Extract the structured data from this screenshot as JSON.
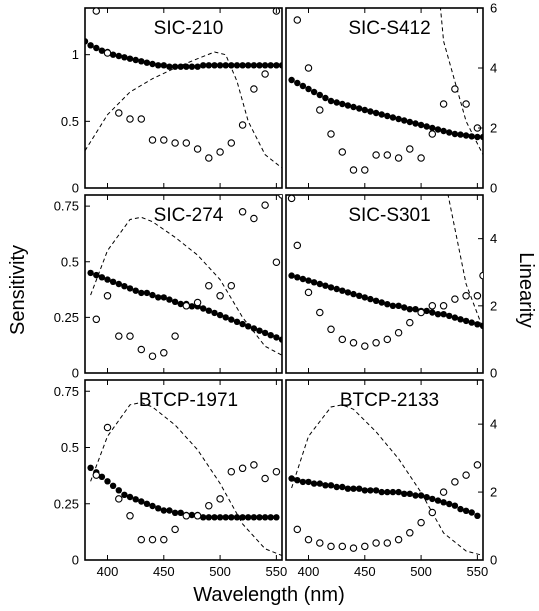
{
  "chart_data": {
    "type": "scatter",
    "layout": "3x2 panel grid with shared axes",
    "xlabel": "Wavelength (nm)",
    "ylabel_left": "Sensitivity",
    "ylabel_right": "Linearity",
    "xlim": [
      380,
      555
    ],
    "x_ticks": [
      "400",
      "450",
      "500",
      "550"
    ],
    "series_styles": {
      "filled_circles": "Sensitivity (left axis)",
      "open_circles": "Linearity (right axis)",
      "dashed_line": "reference spectrum (unscaled)"
    },
    "panels": [
      {
        "name": "SIC-210",
        "ylim_left": [
          0,
          1.35
        ],
        "left_ticks": [
          "0",
          "0.5",
          "1"
        ],
        "ylim_right": [
          0,
          6
        ],
        "right_ticks": [
          "0",
          "2",
          "4",
          "6"
        ],
        "filled": {
          "x": [
            380,
            385,
            390,
            395,
            400,
            405,
            410,
            415,
            420,
            425,
            430,
            435,
            440,
            445,
            450,
            455,
            460,
            465,
            470,
            475,
            480,
            485,
            490,
            495,
            500,
            505,
            510,
            515,
            520,
            525,
            530,
            535,
            540,
            545,
            550,
            555
          ],
          "y": [
            1.1,
            1.07,
            1.05,
            1.03,
            1.02,
            1.0,
            0.99,
            0.98,
            0.97,
            0.96,
            0.95,
            0.94,
            0.93,
            0.92,
            0.92,
            0.91,
            0.91,
            0.91,
            0.91,
            0.91,
            0.91,
            0.92,
            0.92,
            0.92,
            0.92,
            0.92,
            0.92,
            0.92,
            0.92,
            0.92,
            0.92,
            0.92,
            0.92,
            0.92,
            0.92,
            0.92
          ]
        },
        "open": {
          "x": [
            390,
            400,
            410,
            420,
            430,
            440,
            450,
            460,
            470,
            480,
            490,
            500,
            510,
            520,
            530,
            540,
            550
          ],
          "y": [
            5.9,
            4.5,
            2.5,
            2.3,
            2.3,
            1.6,
            1.6,
            1.5,
            1.5,
            1.3,
            1.0,
            1.2,
            1.5,
            2.1,
            3.3,
            3.8,
            5.9
          ]
        },
        "dashed": {
          "x": [
            380,
            400,
            420,
            440,
            460,
            480,
            495,
            505,
            515,
            525,
            540,
            555
          ],
          "y": [
            0.28,
            0.55,
            0.72,
            0.82,
            0.9,
            0.97,
            1.02,
            1.0,
            0.8,
            0.5,
            0.25,
            0.15
          ]
        }
      },
      {
        "name": "SIC-S412",
        "ylim_left": [
          0,
          1.35
        ],
        "left_ticks": [
          "0",
          "0.5",
          "1"
        ],
        "ylim_right": [
          0,
          6
        ],
        "right_ticks": [
          "0",
          "2",
          "4",
          "6"
        ],
        "filled": {
          "x": [
            385,
            390,
            395,
            400,
            405,
            410,
            415,
            420,
            425,
            430,
            435,
            440,
            445,
            450,
            455,
            460,
            465,
            470,
            475,
            480,
            485,
            490,
            495,
            500,
            505,
            510,
            515,
            520,
            525,
            530,
            535,
            540,
            545,
            550,
            555
          ],
          "y": [
            3.6,
            3.5,
            3.4,
            3.3,
            3.2,
            3.1,
            3.0,
            2.9,
            2.85,
            2.8,
            2.75,
            2.7,
            2.65,
            2.6,
            2.55,
            2.5,
            2.45,
            2.4,
            2.35,
            2.3,
            2.25,
            2.2,
            2.15,
            2.1,
            2.05,
            2.0,
            1.95,
            1.9,
            1.85,
            1.8,
            1.78,
            1.75,
            1.72,
            1.7,
            1.7
          ]
        },
        "open": {
          "x": [
            390,
            400,
            410,
            420,
            430,
            440,
            450,
            460,
            470,
            480,
            490,
            500,
            510,
            520,
            530,
            540,
            550
          ],
          "y": [
            5.6,
            4.0,
            2.6,
            1.8,
            1.2,
            0.6,
            0.6,
            1.1,
            1.1,
            1.0,
            1.3,
            1.0,
            1.8,
            2.8,
            3.3,
            2.8,
            2.0
          ]
        },
        "dashed": {
          "x": [
            385,
            400,
            420,
            440,
            450,
            460,
            480,
            500,
            520,
            540,
            555
          ],
          "y": [
            3.5,
            3.6,
            4.0,
            4.5,
            4.6,
            4.5,
            3.9,
            2.9,
            1.1,
            0.5,
            0.25
          ]
        }
      },
      {
        "name": "SIC-274",
        "ylim_left": [
          0,
          0.8
        ],
        "left_ticks": [
          "0",
          "0.25",
          "0.5",
          "0.75"
        ],
        "ylim_right": [
          0,
          5.3
        ],
        "right_ticks": [
          "0",
          "2",
          "4"
        ],
        "filled": {
          "x": [
            385,
            390,
            395,
            400,
            405,
            410,
            415,
            420,
            425,
            430,
            435,
            440,
            445,
            450,
            455,
            460,
            465,
            470,
            475,
            480,
            485,
            490,
            495,
            500,
            505,
            510,
            515,
            520,
            525,
            530,
            535,
            540,
            545,
            550,
            555
          ],
          "y": [
            0.45,
            0.44,
            0.43,
            0.42,
            0.41,
            0.4,
            0.39,
            0.38,
            0.37,
            0.36,
            0.36,
            0.35,
            0.34,
            0.34,
            0.33,
            0.32,
            0.31,
            0.31,
            0.3,
            0.3,
            0.29,
            0.28,
            0.27,
            0.26,
            0.25,
            0.24,
            0.23,
            0.22,
            0.21,
            0.2,
            0.19,
            0.18,
            0.17,
            0.16,
            0.15
          ]
        },
        "open": {
          "x": [
            390,
            400,
            410,
            420,
            430,
            440,
            450,
            460,
            470,
            480,
            490,
            500,
            510,
            520,
            530,
            540,
            550,
            555
          ],
          "y": [
            1.6,
            2.3,
            1.1,
            1.1,
            0.7,
            0.5,
            0.6,
            1.1,
            2.0,
            2.1,
            2.6,
            2.3,
            2.6,
            4.8,
            4.6,
            5.0,
            3.3,
            5.3
          ]
        },
        "dashed": {
          "x": [
            385,
            400,
            420,
            430,
            440,
            460,
            480,
            500,
            520,
            540,
            555
          ],
          "y": [
            0.35,
            0.55,
            0.69,
            0.7,
            0.68,
            0.61,
            0.53,
            0.42,
            0.25,
            0.12,
            0.08
          ]
        }
      },
      {
        "name": "SIC-S301",
        "ylim_left": [
          0,
          0.8
        ],
        "left_ticks": [
          "0",
          "0.25",
          "0.5",
          "0.75"
        ],
        "ylim_right": [
          0,
          5.3
        ],
        "right_ticks": [
          "0",
          "2",
          "4"
        ],
        "filled": {
          "x": [
            385,
            390,
            395,
            400,
            405,
            410,
            415,
            420,
            425,
            430,
            435,
            440,
            445,
            450,
            455,
            460,
            465,
            470,
            475,
            480,
            485,
            490,
            495,
            500,
            505,
            510,
            515,
            520,
            525,
            530,
            535,
            540,
            545,
            550,
            555
          ],
          "y": [
            2.9,
            2.85,
            2.8,
            2.75,
            2.7,
            2.65,
            2.6,
            2.55,
            2.5,
            2.45,
            2.4,
            2.35,
            2.3,
            2.25,
            2.2,
            2.15,
            2.1,
            2.05,
            2.0,
            2.0,
            1.95,
            1.9,
            1.9,
            1.85,
            1.85,
            1.8,
            1.75,
            1.75,
            1.7,
            1.65,
            1.6,
            1.55,
            1.5,
            1.45,
            1.4
          ]
        },
        "open": {
          "x": [
            385,
            390,
            400,
            410,
            420,
            430,
            440,
            450,
            460,
            470,
            480,
            490,
            500,
            510,
            520,
            530,
            540,
            550,
            555
          ],
          "y": [
            5.2,
            3.8,
            2.4,
            1.8,
            1.3,
            1.0,
            0.9,
            0.8,
            0.9,
            1.0,
            1.2,
            1.5,
            1.8,
            2.0,
            2.0,
            2.2,
            2.3,
            2.3,
            2.9
          ]
        },
        "dashed": {
          "x": [
            385,
            400,
            420,
            440,
            450,
            460,
            480,
            500,
            520,
            540,
            555
          ],
          "y": [
            2.6,
            3.0,
            3.7,
            4.4,
            4.6,
            4.5,
            3.8,
            2.8,
            0.9,
            0.4,
            0.2
          ]
        }
      },
      {
        "name": "BTCP-1971",
        "ylim_left": [
          0,
          0.8
        ],
        "left_ticks": [
          "0",
          "0.25",
          "0.5",
          "0.75"
        ],
        "ylim_right": [
          0,
          5.3
        ],
        "right_ticks": [
          "0",
          "2",
          "4"
        ],
        "filled": {
          "x": [
            385,
            390,
            395,
            400,
            405,
            410,
            415,
            420,
            425,
            430,
            435,
            440,
            445,
            450,
            455,
            460,
            465,
            470,
            475,
            480,
            485,
            490,
            495,
            500,
            505,
            510,
            515,
            520,
            525,
            530,
            535,
            540,
            545,
            550
          ],
          "y": [
            0.41,
            0.39,
            0.37,
            0.35,
            0.33,
            0.31,
            0.29,
            0.28,
            0.27,
            0.26,
            0.25,
            0.24,
            0.23,
            0.22,
            0.22,
            0.21,
            0.21,
            0.2,
            0.2,
            0.2,
            0.19,
            0.19,
            0.19,
            0.19,
            0.19,
            0.19,
            0.19,
            0.19,
            0.19,
            0.19,
            0.19,
            0.19,
            0.19,
            0.19
          ]
        },
        "open": {
          "x": [
            390,
            400,
            410,
            420,
            430,
            440,
            450,
            460,
            470,
            480,
            490,
            500,
            510,
            520,
            530,
            540,
            550
          ],
          "y": [
            2.5,
            3.9,
            1.8,
            1.3,
            0.6,
            0.6,
            0.6,
            0.9,
            1.3,
            1.3,
            1.6,
            1.8,
            2.6,
            2.7,
            2.8,
            2.4,
            2.6
          ]
        },
        "dashed": {
          "x": [
            385,
            400,
            420,
            430,
            440,
            460,
            480,
            500,
            520,
            540,
            555
          ],
          "y": [
            0.35,
            0.55,
            0.69,
            0.7,
            0.68,
            0.6,
            0.49,
            0.34,
            0.16,
            0.05,
            0.02
          ]
        }
      },
      {
        "name": "BTCP-2133",
        "ylim_left": [
          0,
          0.8
        ],
        "left_ticks": [
          "0",
          "0.25",
          "0.5",
          "0.75"
        ],
        "ylim_right": [
          0,
          5.3
        ],
        "right_ticks": [
          "0",
          "2",
          "4"
        ],
        "filled": {
          "x": [
            385,
            390,
            395,
            400,
            405,
            410,
            415,
            420,
            425,
            430,
            435,
            440,
            445,
            450,
            455,
            460,
            465,
            470,
            475,
            480,
            485,
            490,
            495,
            500,
            505,
            510,
            515,
            520,
            525,
            530,
            535,
            540,
            545,
            550
          ],
          "y": [
            2.4,
            2.35,
            2.3,
            2.3,
            2.25,
            2.25,
            2.2,
            2.2,
            2.15,
            2.15,
            2.1,
            2.1,
            2.1,
            2.05,
            2.05,
            2.05,
            2.0,
            2.0,
            2.0,
            2.0,
            1.95,
            1.95,
            1.9,
            1.9,
            1.85,
            1.8,
            1.75,
            1.7,
            1.65,
            1.6,
            1.5,
            1.45,
            1.4,
            1.3
          ]
        },
        "open": {
          "x": [
            390,
            400,
            410,
            420,
            430,
            440,
            450,
            460,
            470,
            480,
            490,
            500,
            510,
            520,
            530,
            540,
            550
          ],
          "y": [
            0.9,
            0.6,
            0.5,
            0.4,
            0.4,
            0.35,
            0.4,
            0.5,
            0.5,
            0.6,
            0.8,
            1.1,
            1.4,
            2.0,
            2.3,
            2.5,
            2.8
          ]
        },
        "dashed": {
          "x": [
            385,
            400,
            420,
            430,
            440,
            460,
            480,
            500,
            520,
            540,
            555
          ],
          "y": [
            0.32,
            0.55,
            0.68,
            0.69,
            0.67,
            0.57,
            0.45,
            0.3,
            0.12,
            0.04,
            0.02
          ]
        }
      }
    ]
  }
}
